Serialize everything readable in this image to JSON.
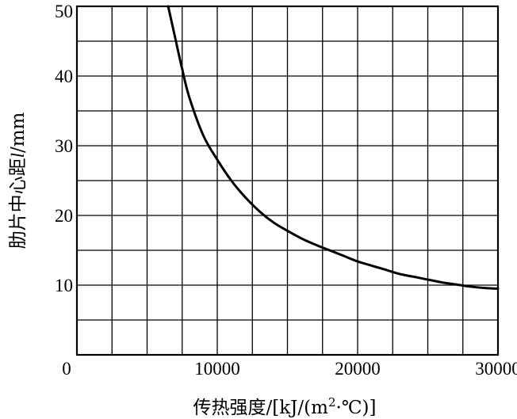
{
  "chart_data": {
    "type": "line",
    "xlabel_parts": {
      "pre": "传热强度/[kJ/(m",
      "sup": "2",
      "post": "·℃)]"
    },
    "ylabel_parts": {
      "pre": "肋片中心距",
      "italic": "l",
      "post": "/mm"
    },
    "xlim": [
      0,
      30000
    ],
    "ylim": [
      0,
      50
    ],
    "x_ticks": [
      {
        "value": 0,
        "label": "0"
      },
      {
        "value": 10000,
        "label": "10000"
      },
      {
        "value": 20000,
        "label": "20000"
      },
      {
        "value": 30000,
        "label": "30000"
      }
    ],
    "y_ticks": [
      {
        "value": 10,
        "label": "10"
      },
      {
        "value": 20,
        "label": "20"
      },
      {
        "value": 30,
        "label": "30"
      },
      {
        "value": 40,
        "label": "40"
      },
      {
        "value": 50,
        "label": "50"
      }
    ],
    "x_grid_step": 2500,
    "y_grid_step": 5,
    "grid": true,
    "series": [
      {
        "x": [
          6500,
          7000,
          7500,
          8000,
          9000,
          10000,
          11000,
          12000,
          13000,
          14000,
          15000,
          16000,
          17000,
          18000,
          19000,
          20000,
          21000,
          22000,
          23000,
          24000,
          25000,
          26000,
          27000,
          28000,
          29000,
          30000
        ],
        "y": [
          50,
          45.5,
          41,
          37,
          31.5,
          28,
          25,
          22.6,
          20.6,
          19,
          17.8,
          16.7,
          15.8,
          15,
          14.2,
          13.4,
          12.8,
          12.2,
          11.6,
          11.2,
          10.8,
          10.4,
          10.1,
          9.8,
          9.6,
          9.5
        ]
      }
    ]
  }
}
